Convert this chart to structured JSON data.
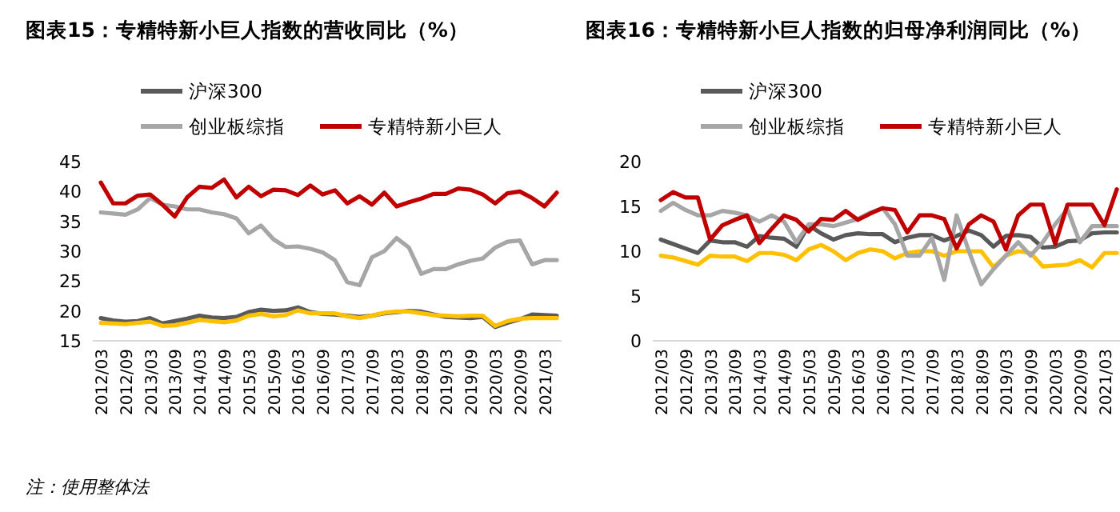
{
  "chart_data": [
    {
      "type": "line",
      "title": "图表15：专精特新小巨人指数的营收同比（%）",
      "categories": [
        "2012/03",
        null,
        "2012/09",
        null,
        "2013/03",
        null,
        "2013/09",
        null,
        "2014/03",
        null,
        "2014/09",
        null,
        "2015/03",
        null,
        "2015/09",
        null,
        "2016/03",
        null,
        "2016/09",
        null,
        "2017/03",
        null,
        "2017/09",
        null,
        "2018/03",
        null,
        "2018/09",
        null,
        "2019/03",
        null,
        "2019/09",
        null,
        "2020/03",
        null,
        "2020/09",
        null,
        "2021/03",
        null
      ],
      "ylim": [
        15,
        45
      ],
      "yticks": [
        15,
        20,
        25,
        30,
        35,
        40,
        45
      ],
      "legend": "top",
      "annotations": [
        "注：使用整体法"
      ],
      "series": [
        {
          "name": "沪深300",
          "color": "#595959",
          "values": [
            18.8,
            18.4,
            18.2,
            18.3,
            18.8,
            17.9,
            18.3,
            18.7,
            19.2,
            18.9,
            18.8,
            19.0,
            19.8,
            20.2,
            20.0,
            20.1,
            20.6,
            19.8,
            19.5,
            19.4,
            19.2,
            19.0,
            19.2,
            19.6,
            19.8,
            20.0,
            19.9,
            19.4,
            19.0,
            18.9,
            18.8,
            19.0,
            17.3,
            18.0,
            18.6,
            19.4,
            19.3,
            19.2
          ]
        },
        {
          "color": "#ffc000",
          "values": [
            18.0,
            17.9,
            17.8,
            18.0,
            18.2,
            17.5,
            17.6,
            18.0,
            18.5,
            18.3,
            18.1,
            18.4,
            19.2,
            19.5,
            19.1,
            19.3,
            20.1,
            19.6,
            19.6,
            19.6,
            19.1,
            18.8,
            19.2,
            19.7,
            19.9,
            19.9,
            19.6,
            19.3,
            19.2,
            19.1,
            19.2,
            19.2,
            17.5,
            18.3,
            18.7,
            18.8,
            18.8,
            18.8
          ]
        },
        {
          "name": "创业板综指",
          "color": "#a6a6a6",
          "values": [
            36.5,
            36.3,
            36.1,
            37.0,
            38.9,
            37.8,
            37.5,
            37.0,
            37.0,
            36.5,
            36.2,
            35.5,
            33.0,
            34.3,
            32.0,
            30.7,
            30.8,
            30.4,
            29.8,
            28.5,
            24.8,
            24.3,
            29.0,
            30.0,
            32.2,
            30.6,
            26.2,
            27.0,
            27.0,
            27.8,
            28.4,
            28.8,
            30.6,
            31.6,
            31.8,
            27.8,
            28.5,
            28.5
          ]
        },
        {
          "name": "专精特新小巨人",
          "color": "#c00000",
          "values": [
            41.5,
            38.0,
            38.0,
            39.3,
            39.5,
            37.8,
            35.8,
            39.0,
            40.8,
            40.6,
            42.0,
            39.0,
            40.8,
            39.2,
            40.3,
            40.2,
            39.4,
            41.0,
            39.5,
            40.2,
            38.0,
            39.2,
            37.8,
            39.8,
            37.5,
            38.2,
            38.8,
            39.6,
            39.6,
            40.5,
            40.3,
            39.5,
            38.0,
            39.7,
            40.0,
            38.9,
            37.5,
            39.8
          ]
        }
      ]
    },
    {
      "type": "line",
      "title": "图表16：专精特新小巨人指数的归母净利润同比（%）",
      "categories": [
        "2012/03",
        null,
        "2012/09",
        null,
        "2013/03",
        null,
        "2013/09",
        null,
        "2014/03",
        null,
        "2014/09",
        null,
        "2015/03",
        null,
        "2015/09",
        null,
        "2016/03",
        null,
        "2016/09",
        null,
        "2017/03",
        null,
        "2017/09",
        null,
        "2018/03",
        null,
        "2018/09",
        null,
        "2019/03",
        null,
        "2019/09",
        null,
        "2020/03",
        null,
        "2020/09",
        null,
        "2021/03",
        null
      ],
      "ylim": [
        0,
        20
      ],
      "yticks": [
        0,
        5,
        10,
        15,
        20
      ],
      "legend": "top",
      "series": [
        {
          "name": "沪深300",
          "color": "#595959",
          "values": [
            11.3,
            10.8,
            10.3,
            9.8,
            11.2,
            11.0,
            11.0,
            10.5,
            11.7,
            11.5,
            11.4,
            10.5,
            12.9,
            12.0,
            11.3,
            11.8,
            12.0,
            11.9,
            11.9,
            11.0,
            11.5,
            11.8,
            11.8,
            11.2,
            11.7,
            12.3,
            11.8,
            10.5,
            11.7,
            11.8,
            11.6,
            10.4,
            10.5,
            11.1,
            11.2,
            12.0,
            12.1,
            12.1
          ]
        },
        {
          "color": "#ffc000",
          "values": [
            9.5,
            9.3,
            8.9,
            8.5,
            9.5,
            9.4,
            9.4,
            8.9,
            9.8,
            9.8,
            9.6,
            9.0,
            10.2,
            10.7,
            10.0,
            9.0,
            9.8,
            10.2,
            10.0,
            9.2,
            9.8,
            10.0,
            10.0,
            9.5,
            10.0,
            10.0,
            10.0,
            8.2,
            9.5,
            10.0,
            9.8,
            8.3,
            8.4,
            8.5,
            9.0,
            8.2,
            9.8,
            9.8
          ]
        },
        {
          "name": "创业板综指",
          "color": "#a6a6a6",
          "values": [
            14.5,
            15.4,
            14.6,
            14.0,
            14.0,
            14.5,
            14.3,
            14.0,
            13.3,
            14.0,
            13.3,
            11.0,
            13.0,
            13.0,
            12.8,
            13.2,
            13.6,
            14.3,
            14.8,
            13.0,
            9.5,
            9.5,
            11.5,
            6.8,
            14.0,
            10.0,
            6.3,
            8.0,
            9.5,
            11.0,
            9.5,
            11.0,
            13.0,
            14.7,
            11.0,
            12.8,
            12.8,
            12.8
          ]
        },
        {
          "name": "专精特新小巨人",
          "color": "#c00000",
          "values": [
            15.7,
            16.6,
            16.0,
            16.0,
            11.3,
            12.9,
            13.5,
            14.0,
            10.9,
            12.5,
            14.0,
            13.5,
            12.2,
            13.6,
            13.5,
            14.5,
            13.5,
            14.2,
            14.8,
            14.6,
            12.1,
            14.0,
            14.0,
            13.6,
            10.3,
            13.0,
            14.0,
            13.3,
            10.2,
            14.0,
            15.2,
            15.2,
            10.8,
            15.2,
            15.2,
            15.2,
            12.9,
            16.9
          ]
        }
      ]
    }
  ]
}
